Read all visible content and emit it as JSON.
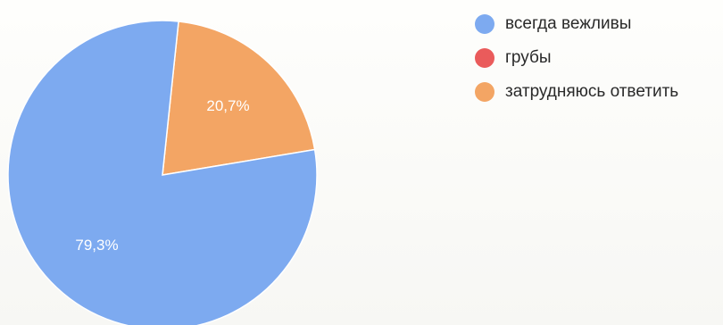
{
  "chart_data": {
    "type": "pie",
    "slices": [
      {
        "label": "всегда вежливы",
        "value": 79.3,
        "value_label": "79,3%",
        "color": "#7daaf0"
      },
      {
        "label": "грубы",
        "value": 0,
        "value_label": "",
        "color": "#ea5b5b"
      },
      {
        "label": "затрудняюсь ответить",
        "value": 20.7,
        "value_label": "20,7%",
        "color": "#f3a564"
      }
    ],
    "legend_position": "top-right"
  }
}
